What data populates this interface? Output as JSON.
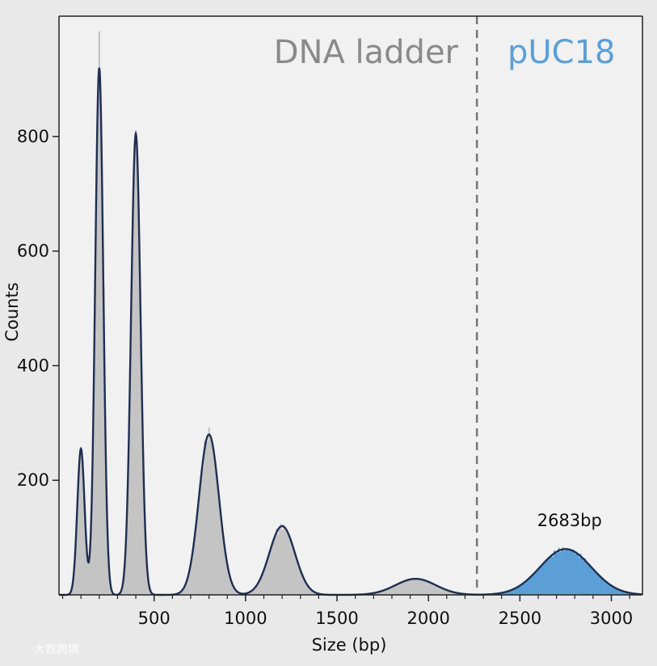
{
  "chart_data": {
    "type": "histogram",
    "xlabel": "Size (bp)",
    "ylabel": "Counts",
    "xlim": [
      -20,
      3170
    ],
    "ylim": [
      0,
      1010
    ],
    "xticks": [
      500,
      1000,
      1500,
      2000,
      2500,
      3000
    ],
    "xtick_labels": [
      "500",
      "1000",
      "1500",
      "2000",
      "2500",
      "3000"
    ],
    "yticks": [
      200,
      400,
      600,
      800
    ],
    "ytick_labels": [
      "200",
      "400",
      "600",
      "800"
    ],
    "grid": false,
    "divider_x": 2265,
    "regions": {
      "left_label": "DNA ladder",
      "right_label": "pUC18"
    },
    "annotation": {
      "text": "2683bp",
      "x": 2683
    },
    "colors": {
      "ladder_bars": "#c4c4c4",
      "puc_bars": "#5b9fd6",
      "fit_line": "#1f2f52",
      "divider": "#777777"
    },
    "peaks": [
      {
        "center": 100,
        "amplitude": 255,
        "sigma": 20,
        "region": "ladder"
      },
      {
        "center": 200,
        "amplitude": 920,
        "sigma": 22,
        "region": "ladder"
      },
      {
        "center": 400,
        "amplitude": 805,
        "sigma": 26,
        "region": "ladder"
      },
      {
        "center": 800,
        "amplitude": 280,
        "sigma": 55,
        "region": "ladder"
      },
      {
        "center": 1200,
        "amplitude": 120,
        "sigma": 70,
        "region": "ladder"
      },
      {
        "center": 1930,
        "amplitude": 28,
        "sigma": 110,
        "region": "ladder"
      },
      {
        "center": 2750,
        "amplitude": 80,
        "sigma": 140,
        "region": "puc"
      }
    ]
  },
  "watermark": "大数跨境"
}
